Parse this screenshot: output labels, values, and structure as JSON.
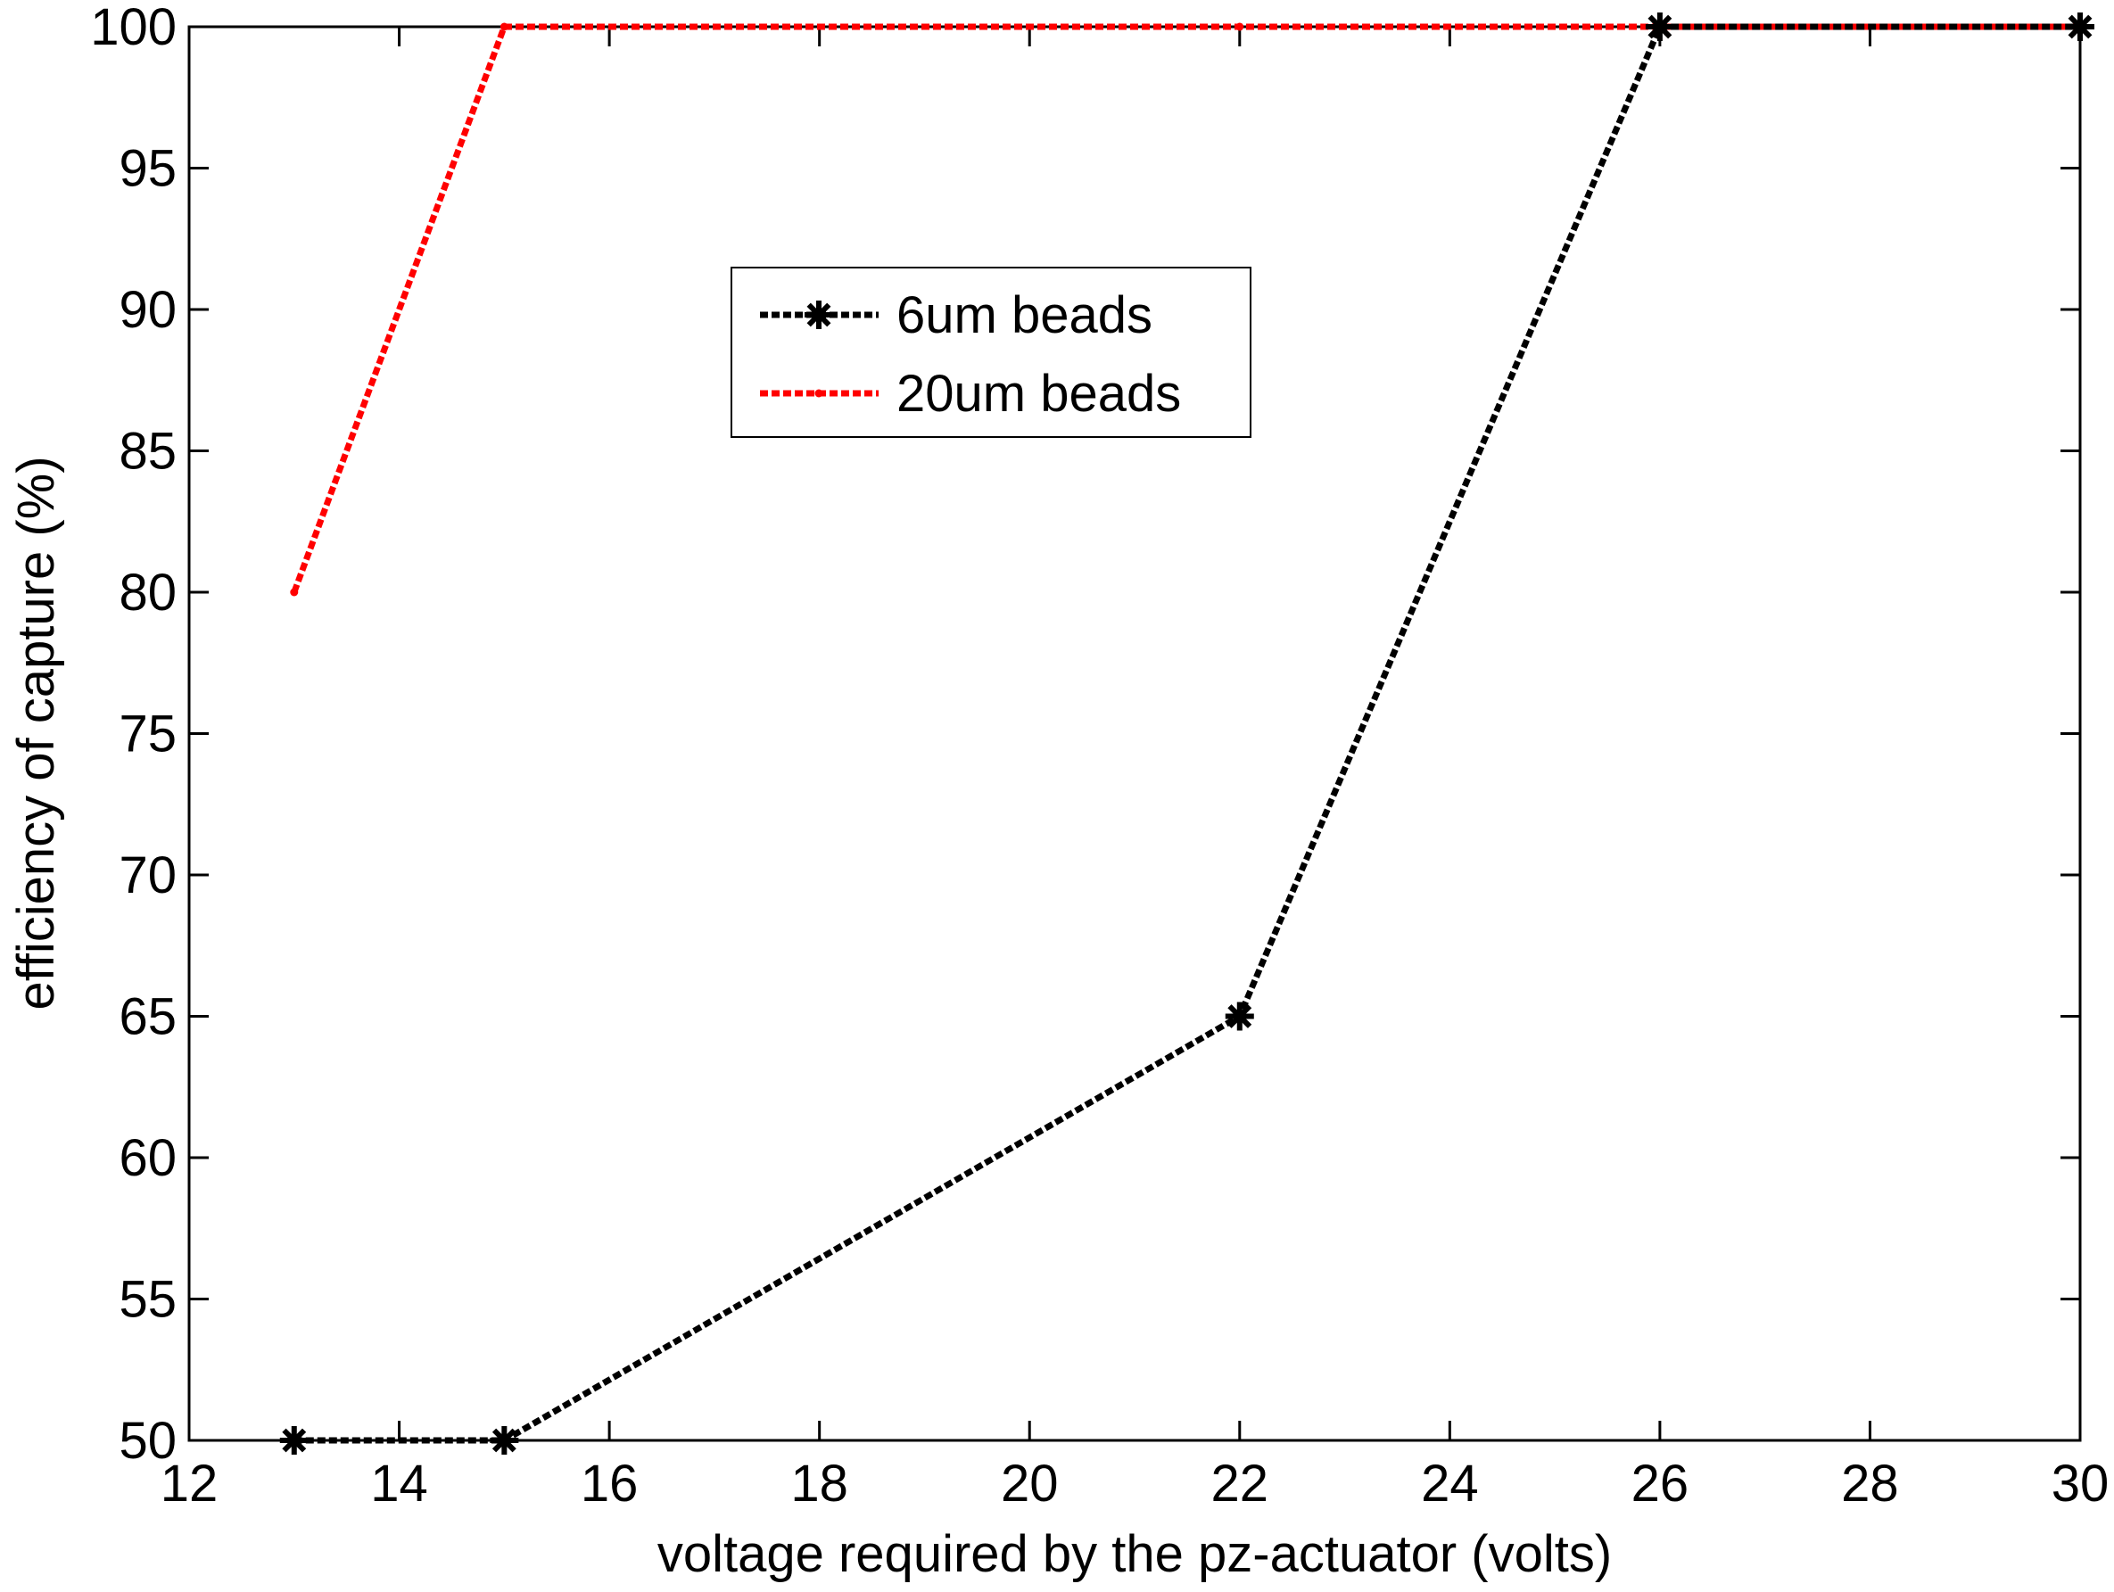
{
  "chart_data": {
    "type": "line",
    "title": "",
    "xlabel": "voltage required by the pz-actuator (volts)",
    "ylabel": "efficiency of capture (%)",
    "xlim": [
      12,
      30
    ],
    "ylim": [
      50,
      100
    ],
    "xticks": [
      12,
      14,
      16,
      18,
      20,
      22,
      24,
      26,
      28,
      30
    ],
    "yticks": [
      50,
      55,
      60,
      65,
      70,
      75,
      80,
      85,
      90,
      95,
      100
    ],
    "grid": false,
    "legend_position": "upper-center",
    "series": [
      {
        "name": "6um beads",
        "color": "#000000",
        "line_style": "dashed",
        "marker": "asterisk",
        "x": [
          13,
          15,
          22,
          26,
          30
        ],
        "y": [
          50,
          50,
          65,
          100,
          100
        ]
      },
      {
        "name": "20um beads",
        "color": "#ff0000",
        "line_style": "dashed",
        "marker": "dot",
        "x": [
          13,
          15,
          22,
          26,
          30
        ],
        "y": [
          80,
          100,
          100,
          100,
          100
        ]
      }
    ]
  }
}
